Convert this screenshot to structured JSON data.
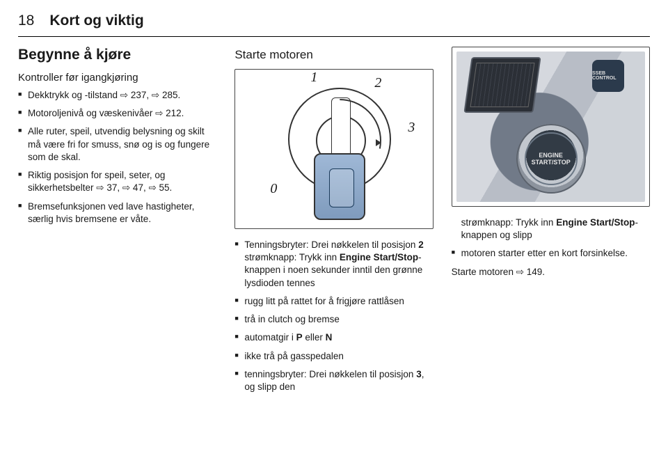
{
  "header": {
    "page_number": "18",
    "chapter_title": "Kort og viktig"
  },
  "col1": {
    "h2": "Begynne å kjøre",
    "h3": "Kontroller før igangkjøring",
    "items": [
      "Dekktrykk og -tilstand ⇨ 237, ⇨ 285.",
      "Motoroljenivå og væskenivåer ⇨ 212.",
      "Alle ruter, speil, utvendig belysning og skilt må være fri for smuss, snø og is og fungere som de skal.",
      "Riktig posisjon for speil, seter, og sikkerhetsbelter ⇨ 37, ⇨ 47, ⇨ 55.",
      "Bremsefunksjonen ved lave hastigheter, særlig hvis bremsene er våte."
    ]
  },
  "col2": {
    "h3": "Starte motoren",
    "fig_numbers": {
      "n0": "0",
      "n1": "1",
      "n2": "2",
      "n3": "3"
    },
    "items_html": [
      "Tenningsbryter: Drei nøkkelen til posisjon <b>2</b><br>strømknapp: Trykk inn <b>Engine Start/Stop</b>-knappen i noen sekunder inntil den grønne lysdioden tennes",
      "rugg litt på rattet for å frigjøre rattlåsen",
      "trå in clutch og bremse",
      "automatgir i <b>P</b> eller <b>N</b>",
      "ikke trå på gasspedalen",
      "tenningsbryter: Drei nøkkelen til posisjon <b>3</b>, og slipp den"
    ]
  },
  "col3": {
    "btn_info": "SSEB CONTROL",
    "btn_label": "ENGINE<br>START/STOP",
    "after_p_html": "strømknapp: Trykk inn <b>Engine Start/Stop</b>-knappen og slipp",
    "items": [
      "motoren starter etter en kort forsinkelse."
    ],
    "last_line": "Starte motoren ⇨ 149."
  }
}
